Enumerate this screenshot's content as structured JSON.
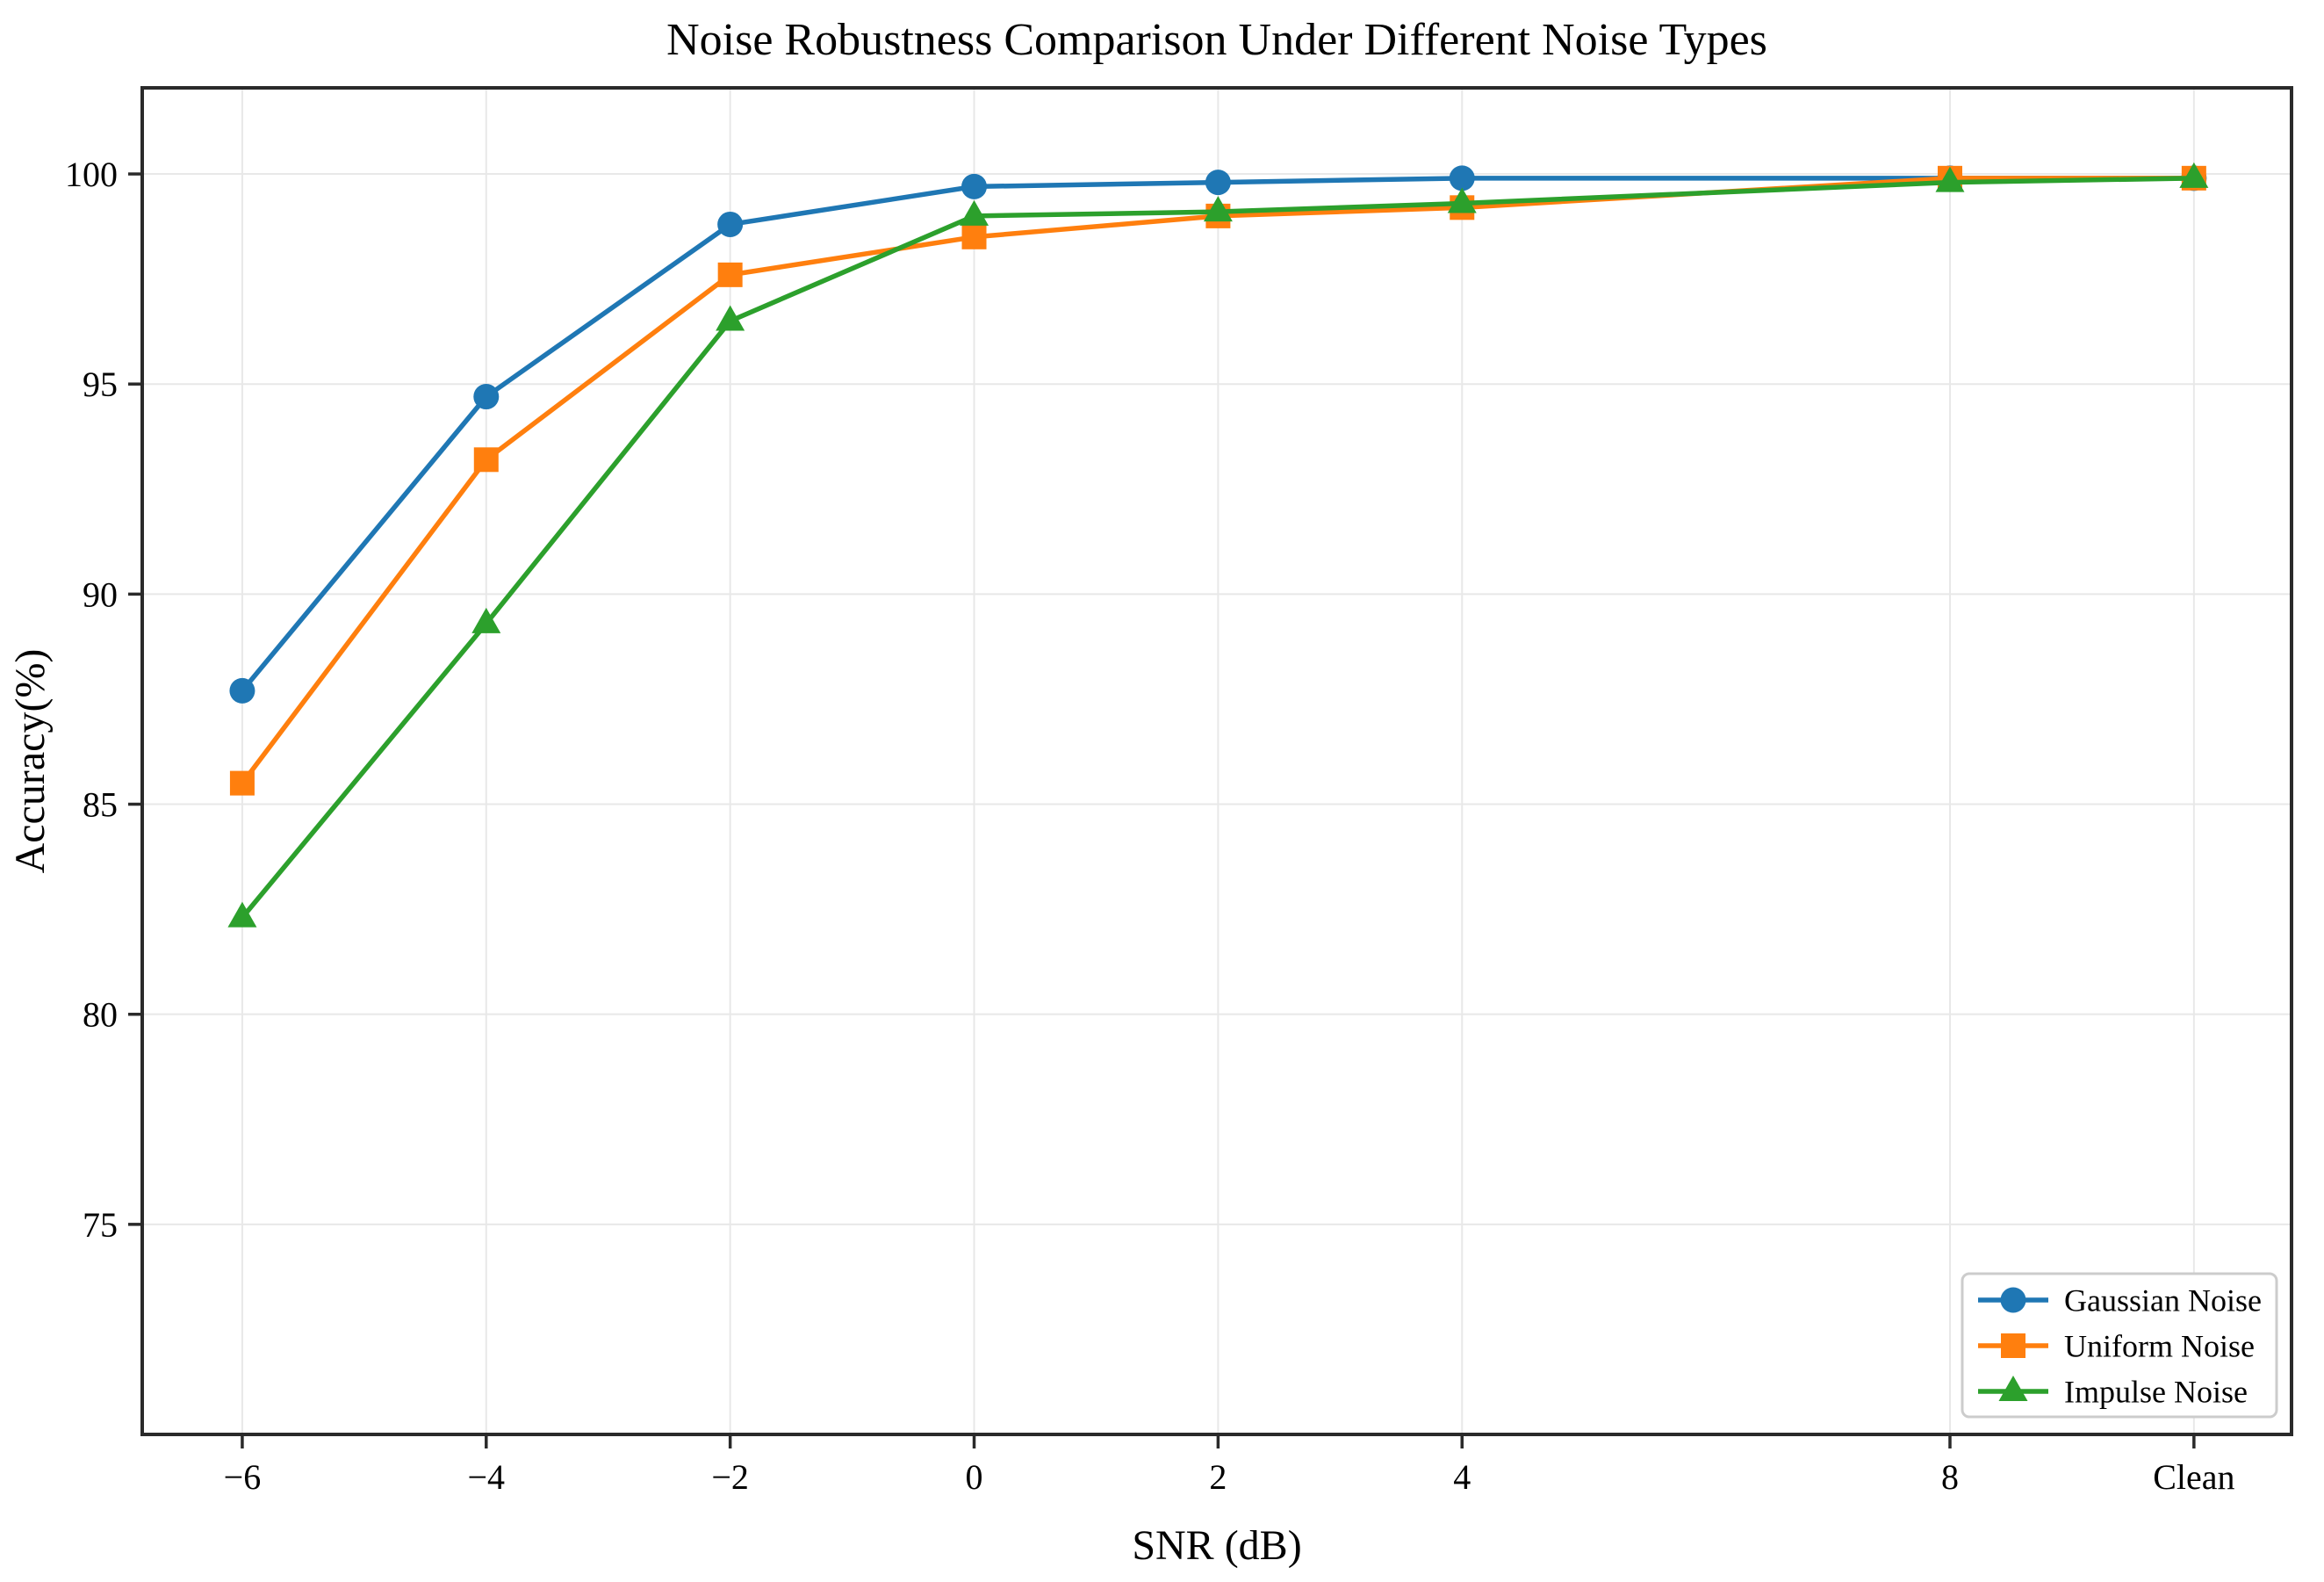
{
  "chart_data": {
    "type": "line",
    "title": "Noise Robustness Comparison Under Different Noise Types",
    "xlabel": "SNR (dB)",
    "ylabel": "Accuracy(%)",
    "x_tick_labels": [
      "−6",
      "−4",
      "−2",
      "0",
      "2",
      "4",
      "8",
      "Clean"
    ],
    "x_positions": [
      -6,
      -4,
      -2,
      0,
      2,
      4,
      8,
      10
    ],
    "xlim": [
      -6.82,
      10.8
    ],
    "ylim": [
      70,
      102.05
    ],
    "y_ticks": [
      75,
      80,
      85,
      90,
      95,
      100
    ],
    "grid": true,
    "legend_position": "lower right",
    "series": [
      {
        "name": "Gaussian Noise",
        "marker": "circle",
        "color": "#1f77b4",
        "values": [
          87.7,
          94.7,
          98.8,
          99.7,
          99.8,
          99.9,
          99.9,
          99.9
        ]
      },
      {
        "name": "Uniform Noise",
        "marker": "square",
        "color": "#ff7f0e",
        "values": [
          85.5,
          93.2,
          97.6,
          98.5,
          99.0,
          99.2,
          99.9,
          99.9
        ]
      },
      {
        "name": "Impulse Noise",
        "marker": "triangle",
        "color": "#2ca02c",
        "values": [
          82.3,
          89.3,
          96.5,
          99.0,
          99.1,
          99.3,
          99.8,
          99.9
        ]
      }
    ]
  },
  "colors": {
    "grid": "#e8e8e8",
    "spine": "#2a2a2a",
    "tick": "#2a2a2a",
    "text": "#000000",
    "legend_border": "#cccccc",
    "background": "#ffffff"
  }
}
